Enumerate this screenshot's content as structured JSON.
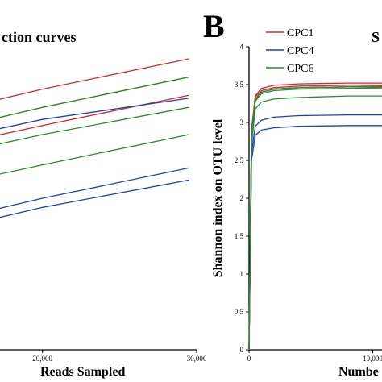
{
  "chart_data": [
    {
      "type": "line",
      "title": "ction curves",
      "xlabel": "Reads Sampled",
      "ylabel": "",
      "x_ticks": [
        "20,000",
        "30,000"
      ],
      "series": [
        {
          "group": "CPC1",
          "color": "#d62728",
          "x": [
            0,
            10000,
            20000,
            29500
          ],
          "y": [
            0.62,
            0.74,
            0.86,
            0.96
          ]
        },
        {
          "group": "CPC1",
          "color": "#d62728",
          "x": [
            0,
            10000,
            20000,
            29500
          ],
          "y": [
            0.57,
            0.68,
            0.8,
            0.9
          ]
        },
        {
          "group": "CPC1",
          "color": "#d62728",
          "x": [
            0,
            10000,
            20000,
            29500
          ],
          "y": [
            0.52,
            0.63,
            0.74,
            0.84
          ]
        },
        {
          "group": "CPC4",
          "color": "#1f3fbf",
          "x": [
            0,
            10000,
            20000,
            29500
          ],
          "y": [
            0.53,
            0.65,
            0.76,
            0.83
          ]
        },
        {
          "group": "CPC4",
          "color": "#1f3fbf",
          "x": [
            0,
            10000,
            20000,
            29500
          ],
          "y": [
            0.27,
            0.38,
            0.5,
            0.6
          ]
        },
        {
          "group": "CPC4",
          "color": "#1f3fbf",
          "x": [
            0,
            10000,
            20000,
            29500
          ],
          "y": [
            0.24,
            0.35,
            0.47,
            0.56
          ]
        },
        {
          "group": "CPC6",
          "color": "#2e8b2e",
          "x": [
            0,
            10000,
            20000,
            29500
          ],
          "y": [
            0.55,
            0.68,
            0.8,
            0.9
          ]
        },
        {
          "group": "CPC6",
          "color": "#2e8b2e",
          "x": [
            0,
            10000,
            20000,
            29500
          ],
          "y": [
            0.49,
            0.6,
            0.71,
            0.8
          ]
        },
        {
          "group": "CPC6",
          "color": "#2e8b2e",
          "x": [
            0,
            10000,
            20000,
            29500
          ],
          "y": [
            0.39,
            0.5,
            0.61,
            0.71
          ]
        }
      ]
    },
    {
      "type": "line",
      "panel_label": "B",
      "title": "S",
      "xlabel": "Numbe",
      "ylabel": "Shannon index on OTU level",
      "ylim": [
        0,
        4
      ],
      "y_ticks": [
        "0",
        "0.5",
        "1",
        "1.5",
        "2",
        "2.5",
        "3",
        "3.5",
        "4"
      ],
      "x_ticks": [
        "0",
        "10,000"
      ],
      "legend": [
        "CPC1",
        "CPC4",
        "CPC6"
      ],
      "legend_position": "top",
      "series": [
        {
          "name": "CPC1",
          "color": "#d62728",
          "x": [
            0,
            200,
            500,
            1000,
            2000,
            4000,
            8000,
            12000,
            20000
          ],
          "y": [
            0,
            2.9,
            3.35,
            3.45,
            3.49,
            3.51,
            3.52,
            3.52,
            3.53
          ]
        },
        {
          "color": "#d62728",
          "x": [
            0,
            200,
            500,
            1000,
            2000,
            4000,
            8000,
            12000,
            20000
          ],
          "y": [
            0,
            2.9,
            3.33,
            3.42,
            3.46,
            3.48,
            3.49,
            3.49,
            3.5
          ]
        },
        {
          "color": "#d62728",
          "x": [
            0,
            200,
            500,
            1000,
            2000,
            4000,
            8000,
            12000,
            20000
          ],
          "y": [
            0,
            2.85,
            3.3,
            3.4,
            3.44,
            3.46,
            3.47,
            3.48,
            3.48
          ]
        },
        {
          "name": "CPC4",
          "color": "#1f3fbf",
          "x": [
            0,
            200,
            500,
            1000,
            2000,
            4000,
            8000,
            12000,
            20000
          ],
          "y": [
            0,
            2.85,
            3.3,
            3.4,
            3.44,
            3.46,
            3.47,
            3.47,
            3.47
          ]
        },
        {
          "color": "#1f3fbf",
          "x": [
            0,
            200,
            500,
            1000,
            2000,
            4000,
            8000,
            12000,
            20000
          ],
          "y": [
            0,
            2.6,
            2.95,
            3.03,
            3.07,
            3.09,
            3.1,
            3.1,
            3.1
          ]
        },
        {
          "color": "#1f3fbf",
          "x": [
            0,
            200,
            500,
            1000,
            2000,
            4000,
            8000,
            12000,
            20000
          ],
          "y": [
            0,
            2.5,
            2.83,
            2.9,
            2.93,
            2.95,
            2.96,
            2.96,
            2.96
          ]
        },
        {
          "name": "CPC6",
          "color": "#2e8b2e",
          "x": [
            0,
            200,
            500,
            1000,
            2000,
            4000,
            8000,
            12000,
            20000
          ],
          "y": [
            0,
            2.85,
            3.3,
            3.4,
            3.44,
            3.46,
            3.47,
            3.47,
            3.47
          ]
        },
        {
          "color": "#2e8b2e",
          "x": [
            0,
            200,
            500,
            1000,
            2000,
            4000,
            8000,
            12000,
            20000
          ],
          "y": [
            0,
            2.7,
            3.18,
            3.27,
            3.31,
            3.33,
            3.35,
            3.35,
            3.36
          ]
        },
        {
          "color": "#2e8b2e",
          "x": [
            0,
            200,
            500,
            1000,
            2000,
            4000,
            8000,
            12000,
            20000
          ],
          "y": [
            0,
            2.8,
            3.28,
            3.38,
            3.42,
            3.44,
            3.45,
            3.46,
            3.46
          ]
        }
      ]
    }
  ]
}
